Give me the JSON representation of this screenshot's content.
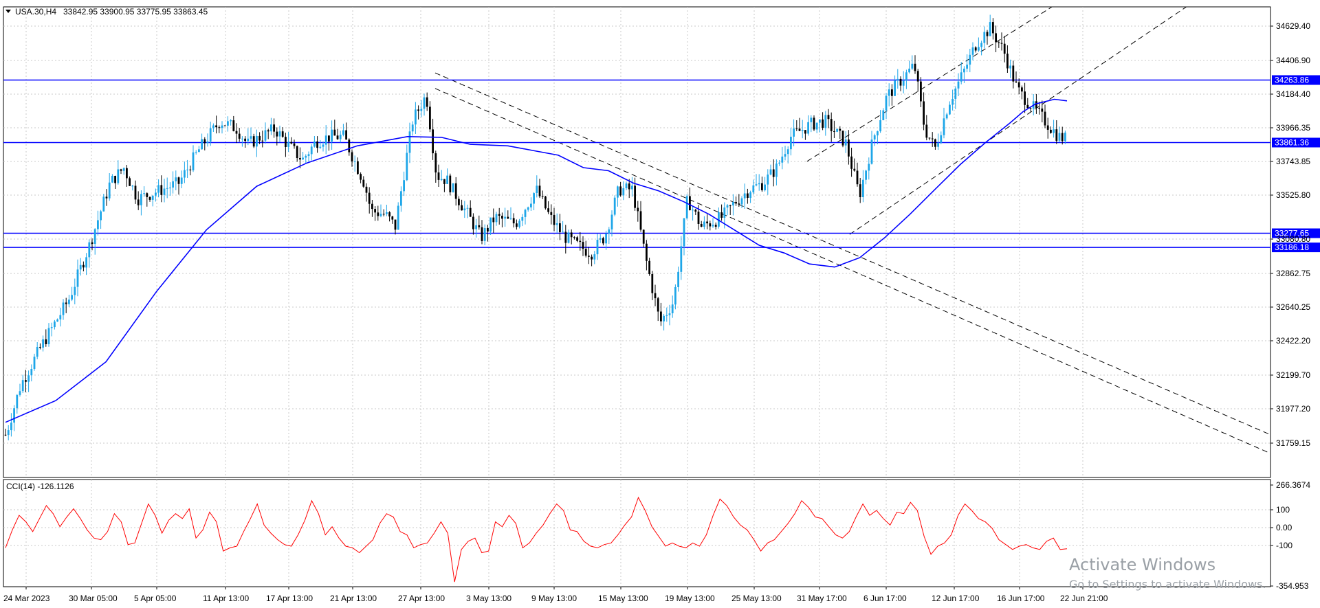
{
  "header": {
    "symbol_label": "USA.30,H4",
    "ohlc_label": "33842.95 33900.95 33775.95 33863.45"
  },
  "indicator": {
    "label": "CCI(14) -126.1126"
  },
  "watermark": {
    "title": "Activate Windows",
    "subtitle": "Go to Settings to activate Windows."
  },
  "colors": {
    "bull": "#1ea6e8",
    "bear": "#000000",
    "moving_average": "#0000ff",
    "level_lines": "#0000ff",
    "level_badge_bg": "#0000ff",
    "cci": "#ff0000",
    "grid": "#c8c8c8",
    "trendlines": "#000000"
  },
  "chart_data": [
    {
      "type": "candlestick",
      "title": "USA.30,H4",
      "y_ticks": [
        "34629.40",
        "34406.90",
        "34184.40",
        "33966.35",
        "33743.85",
        "33525.80",
        "33080.80",
        "32862.75",
        "32640.25",
        "32422.20",
        "32199.70",
        "31977.20",
        "31759.15"
      ],
      "x_ticks": [
        "24 Mar 2023",
        "30 Mar 05:00",
        "5 Apr 05:00",
        "11 Apr 13:00",
        "17 Apr 13:00",
        "21 Apr 13:00",
        "27 Apr 13:00",
        "3 May 13:00",
        "9 May 13:00",
        "15 May 13:00",
        "19 May 13:00",
        "25 May 13:00",
        "31 May 17:00",
        "6 Jun 17:00",
        "12 Jun 17:00",
        "16 Jun 17:00",
        "22 Jun 21:00"
      ],
      "ylim": [
        31705,
        34735
      ],
      "grid": true,
      "horizontal_levels": [
        {
          "value": 34263.86,
          "label": "34263.86"
        },
        {
          "value": 33861.36,
          "label": "33861.36"
        },
        {
          "value": 33277.65,
          "label": "33277.65"
        },
        {
          "value": 33186.18,
          "label": "33186.18"
        }
      ],
      "moving_average_path": [
        [
          0,
          32060
        ],
        [
          40,
          32200
        ],
        [
          80,
          32450
        ],
        [
          120,
          32900
        ],
        [
          160,
          33300
        ],
        [
          200,
          33580
        ],
        [
          240,
          33730
        ],
        [
          280,
          33840
        ],
        [
          320,
          33900
        ],
        [
          347,
          33895
        ],
        [
          370,
          33850
        ],
        [
          400,
          33840
        ],
        [
          420,
          33810
        ],
        [
          440,
          33780
        ],
        [
          460,
          33700
        ],
        [
          480,
          33680
        ],
        [
          500,
          33600
        ],
        [
          520,
          33550
        ],
        [
          540,
          33480
        ],
        [
          560,
          33400
        ],
        [
          580,
          33300
        ],
        [
          600,
          33200
        ],
        [
          620,
          33150
        ],
        [
          640,
          33080
        ],
        [
          660,
          33060
        ],
        [
          680,
          33120
        ],
        [
          700,
          33250
        ],
        [
          720,
          33400
        ],
        [
          740,
          33560
        ],
        [
          760,
          33720
        ],
        [
          780,
          33860
        ],
        [
          800,
          33990
        ],
        [
          810,
          34060
        ],
        [
          820,
          34110
        ],
        [
          835,
          34140
        ],
        [
          845,
          34130
        ]
      ],
      "trendlines": [
        {
          "points": [
            [
              342,
              34310
            ],
            [
              1007,
              31980
            ]
          ],
          "style": "dashed"
        },
        {
          "points": [
            [
              342,
              34210
            ],
            [
              1007,
              31860
            ]
          ],
          "style": "dashed"
        },
        {
          "points": [
            [
              638,
              33740
            ],
            [
              833,
              34735
            ]
          ],
          "style": "dashed"
        },
        {
          "points": [
            [
              672,
              33270
            ],
            [
              940,
              34735
            ]
          ],
          "style": "dashed"
        }
      ],
      "last_close": 33863.45
    },
    {
      "type": "line",
      "title": "CCI(14) -126.1126",
      "y_ticks": [
        "266.3674",
        "100",
        "0.00",
        "-100",
        "-354.953"
      ],
      "ylim": [
        -354.953,
        266.3674
      ],
      "series": [
        {
          "name": "CCI(14)",
          "values": [
            -120,
            -10,
            80,
            40,
            -20,
            60,
            140,
            90,
            10,
            70,
            120,
            60,
            -10,
            -60,
            -70,
            -20,
            90,
            40,
            -100,
            -90,
            30,
            150,
            80,
            -30,
            50,
            90,
            60,
            120,
            -60,
            -10,
            100,
            40,
            -140,
            -120,
            -110,
            -20,
            60,
            150,
            20,
            -30,
            -70,
            -100,
            -110,
            -40,
            50,
            170,
            90,
            -40,
            10,
            -60,
            -110,
            -120,
            -150,
            -110,
            -70,
            30,
            90,
            70,
            -20,
            -40,
            -120,
            -100,
            -90,
            -30,
            40,
            -30,
            -330,
            -130,
            -80,
            -60,
            -150,
            -140,
            40,
            10,
            80,
            30,
            -120,
            -90,
            -30,
            20,
            90,
            150,
            110,
            -10,
            -20,
            -80,
            -110,
            -120,
            -100,
            -90,
            -40,
            20,
            70,
            190,
            110,
            10,
            -50,
            -110,
            -90,
            -110,
            -120,
            -90,
            -110,
            -40,
            80,
            180,
            140,
            70,
            20,
            -10,
            -70,
            -140,
            -90,
            -70,
            -20,
            30,
            90,
            170,
            130,
            70,
            60,
            10,
            -40,
            -60,
            -20,
            70,
            150,
            80,
            110,
            60,
            20,
            100,
            90,
            160,
            110,
            -50,
            -160,
            -110,
            -90,
            -40,
            80,
            150,
            110,
            60,
            40,
            0,
            -70,
            -100,
            -130,
            -110,
            -100,
            -120,
            -130,
            -80,
            -60,
            -130,
            -126
          ]
        }
      ]
    }
  ]
}
